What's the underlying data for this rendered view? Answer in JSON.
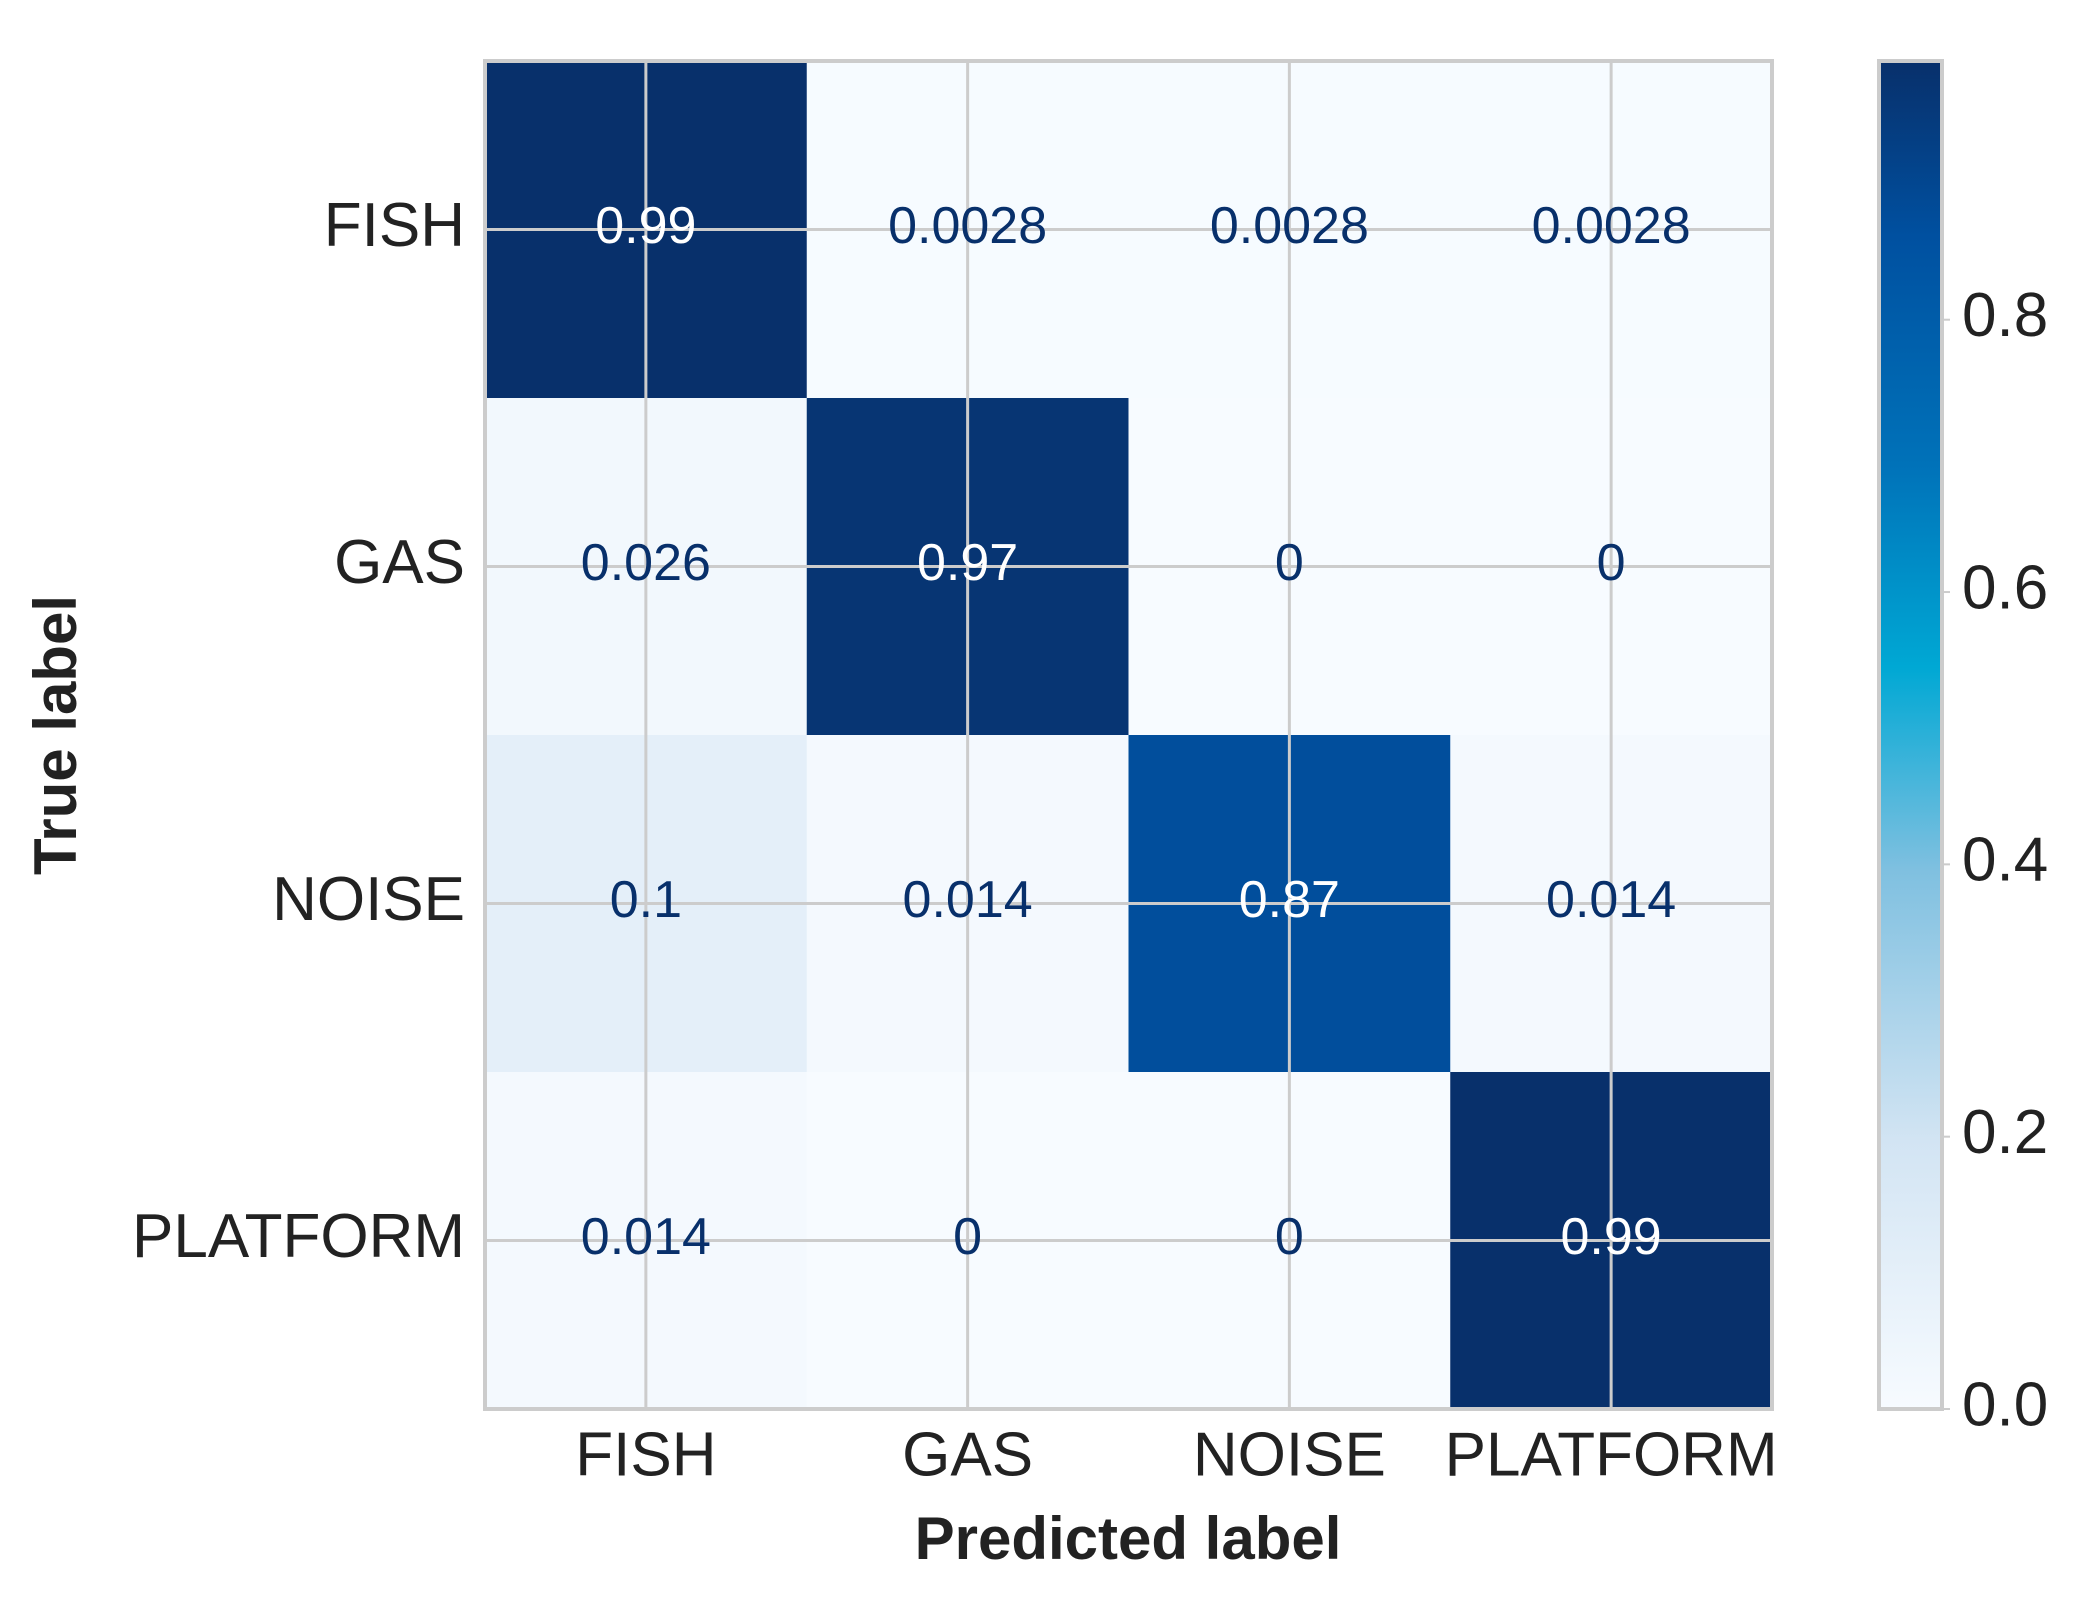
{
  "chart_data": {
    "type": "heatmap",
    "x_label": "Predicted label",
    "y_label": "True label",
    "x_categories": [
      "FISH",
      "GAS",
      "NOISE",
      "PLATFORM"
    ],
    "y_categories": [
      "FISH",
      "GAS",
      "NOISE",
      "PLATFORM"
    ],
    "values": [
      [
        0.99,
        0.0028,
        0.0028,
        0.0028
      ],
      [
        0.026,
        0.97,
        0,
        0
      ],
      [
        0.1,
        0.014,
        0.87,
        0.014
      ],
      [
        0.014,
        0,
        0,
        0.99
      ]
    ],
    "clim": [
      0,
      0.99
    ],
    "cticks": [
      {
        "value": 0,
        "label": "0.0"
      },
      0.2,
      0.4,
      0.6,
      0.8
    ],
    "colormap": [
      {
        "at": 0,
        "color": "#f7fbff"
      },
      {
        "at": 0.2,
        "color": "#d2e4f3"
      },
      {
        "at": 0.4,
        "color": "#7fc0e0"
      },
      {
        "at": 0.55,
        "color": "#00a8d4"
      },
      {
        "at": 0.7,
        "color": "#0072b9"
      },
      {
        "at": 0.87,
        "color": "#0050a0"
      },
      {
        "at": 1,
        "color": "#08306b"
      }
    ],
    "text_color_dark": "#08306b",
    "text_color_light": "#ffffff",
    "grid": true
  }
}
